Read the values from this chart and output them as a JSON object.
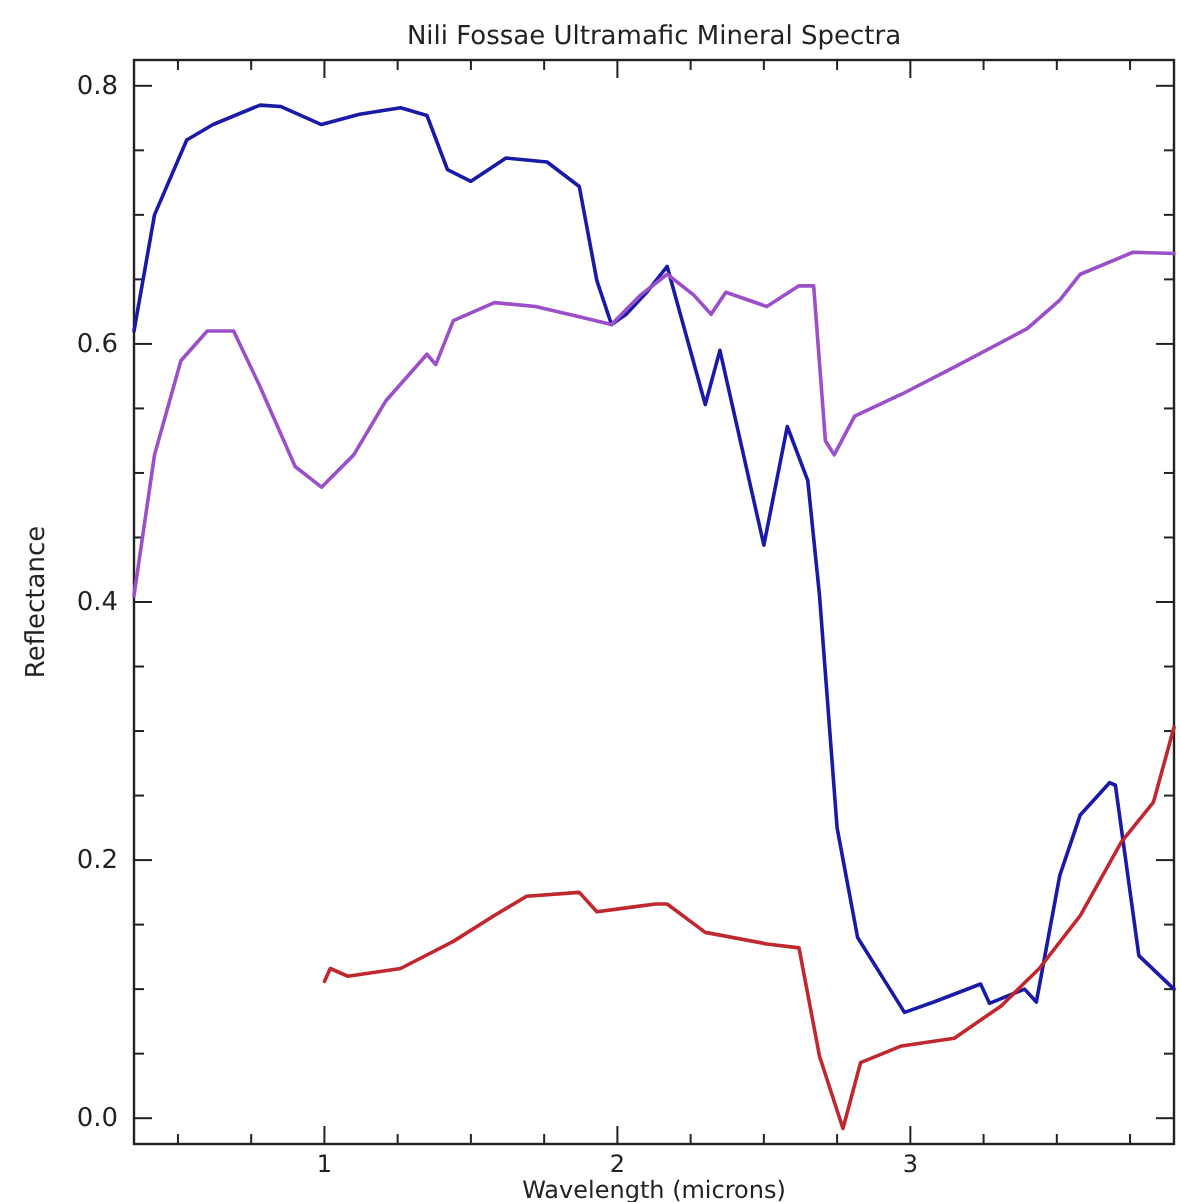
{
  "chart_data": {
    "type": "line",
    "title": "Nili Fossae Ultramafic Mineral Spectra",
    "xlabel": "Wavelength (microns)",
    "ylabel": "Reflectance",
    "xlim": [
      0.35,
      3.9
    ],
    "ylim": [
      -0.02,
      0.82
    ],
    "xticks": [
      {
        "value": 0.5,
        "label": null
      },
      {
        "value": 0.75,
        "label": null
      },
      1,
      {
        "value": 1.25,
        "label": null
      },
      {
        "value": 1.5,
        "label": null
      },
      {
        "value": 1.75,
        "label": null
      },
      2,
      {
        "value": 2.25,
        "label": null
      },
      {
        "value": 2.5,
        "label": null
      },
      {
        "value": 2.75,
        "label": null
      },
      3,
      {
        "value": 3.25,
        "label": null
      },
      {
        "value": 3.5,
        "label": null
      },
      {
        "value": 3.75,
        "label": null
      }
    ],
    "yticks": [
      {
        "value": 0,
        "label": "0.0"
      },
      {
        "value": 0.05,
        "label": null
      },
      {
        "value": 0.1,
        "label": null
      },
      {
        "value": 0.15,
        "label": null
      },
      0.2,
      {
        "value": 0.25,
        "label": null
      },
      {
        "value": 0.3,
        "label": null
      },
      {
        "value": 0.35,
        "label": null
      },
      0.4,
      {
        "value": 0.45,
        "label": null
      },
      {
        "value": 0.5,
        "label": null
      },
      {
        "value": 0.55,
        "label": null
      },
      0.6,
      {
        "value": 0.65,
        "label": null
      },
      {
        "value": 0.7,
        "label": null
      },
      {
        "value": 0.75,
        "label": null
      },
      0.8
    ],
    "grid": false,
    "marker": "none",
    "line_style": "solid",
    "series": [
      {
        "color": "#1a1aa8",
        "x": [
          0.35,
          0.42,
          0.53,
          0.62,
          0.78,
          0.85,
          0.99,
          1.12,
          1.26,
          1.35,
          1.42,
          1.5,
          1.62,
          1.76,
          1.87,
          1.93,
          1.98,
          2.03,
          2.1,
          2.17,
          2.3,
          2.35,
          2.5,
          2.58,
          2.65,
          2.69,
          2.75,
          2.82,
          2.98,
          3.08,
          3.24,
          3.27,
          3.39,
          3.43,
          3.51,
          3.58,
          3.68,
          3.7,
          3.78,
          3.9
        ],
        "values": [
          0.61,
          0.7,
          0.758,
          0.77,
          0.785,
          0.784,
          0.77,
          0.778,
          0.783,
          0.777,
          0.735,
          0.726,
          0.744,
          0.741,
          0.722,
          0.649,
          0.615,
          0.623,
          0.64,
          0.66,
          0.553,
          0.595,
          0.444,
          0.536,
          0.494,
          0.405,
          0.225,
          0.14,
          0.082,
          0.09,
          0.104,
          0.089,
          0.1,
          0.09,
          0.188,
          0.235,
          0.26,
          0.258,
          0.126,
          0.1
        ]
      },
      {
        "color": "#9b4fc8",
        "x": [
          0.35,
          0.42,
          0.51,
          0.6,
          0.69,
          0.78,
          0.9,
          0.99,
          1.1,
          1.21,
          1.35,
          1.38,
          1.44,
          1.58,
          1.72,
          1.87,
          1.98,
          2.08,
          2.17,
          2.26,
          2.32,
          2.37,
          2.51,
          2.62,
          2.67,
          2.71,
          2.74,
          2.81,
          2.97,
          3.15,
          3.4,
          3.51,
          3.58,
          3.76,
          3.9
        ],
        "values": [
          0.405,
          0.514,
          0.587,
          0.61,
          0.61,
          0.567,
          0.505,
          0.489,
          0.514,
          0.556,
          0.592,
          0.584,
          0.618,
          0.632,
          0.629,
          0.621,
          0.615,
          0.638,
          0.654,
          0.638,
          0.623,
          0.64,
          0.629,
          0.645,
          0.645,
          0.525,
          0.514,
          0.544,
          0.561,
          0.582,
          0.612,
          0.634,
          0.654,
          0.671,
          0.67
        ]
      },
      {
        "color": "#c0282e",
        "x": [
          1.0,
          1.02,
          1.08,
          1.26,
          1.44,
          1.58,
          1.69,
          1.87,
          1.93,
          2.03,
          2.13,
          2.17,
          2.3,
          2.51,
          2.62,
          2.69,
          2.77,
          2.83,
          2.97,
          3.15,
          3.31,
          3.44,
          3.58,
          3.72,
          3.83,
          3.9
        ],
        "values": [
          0.106,
          0.116,
          0.11,
          0.116,
          0.137,
          0.157,
          0.172,
          0.175,
          0.16,
          0.163,
          0.166,
          0.166,
          0.144,
          0.135,
          0.132,
          0.048,
          -0.008,
          0.043,
          0.056,
          0.062,
          0.087,
          0.116,
          0.157,
          0.214,
          0.245,
          0.303
        ]
      }
    ]
  }
}
